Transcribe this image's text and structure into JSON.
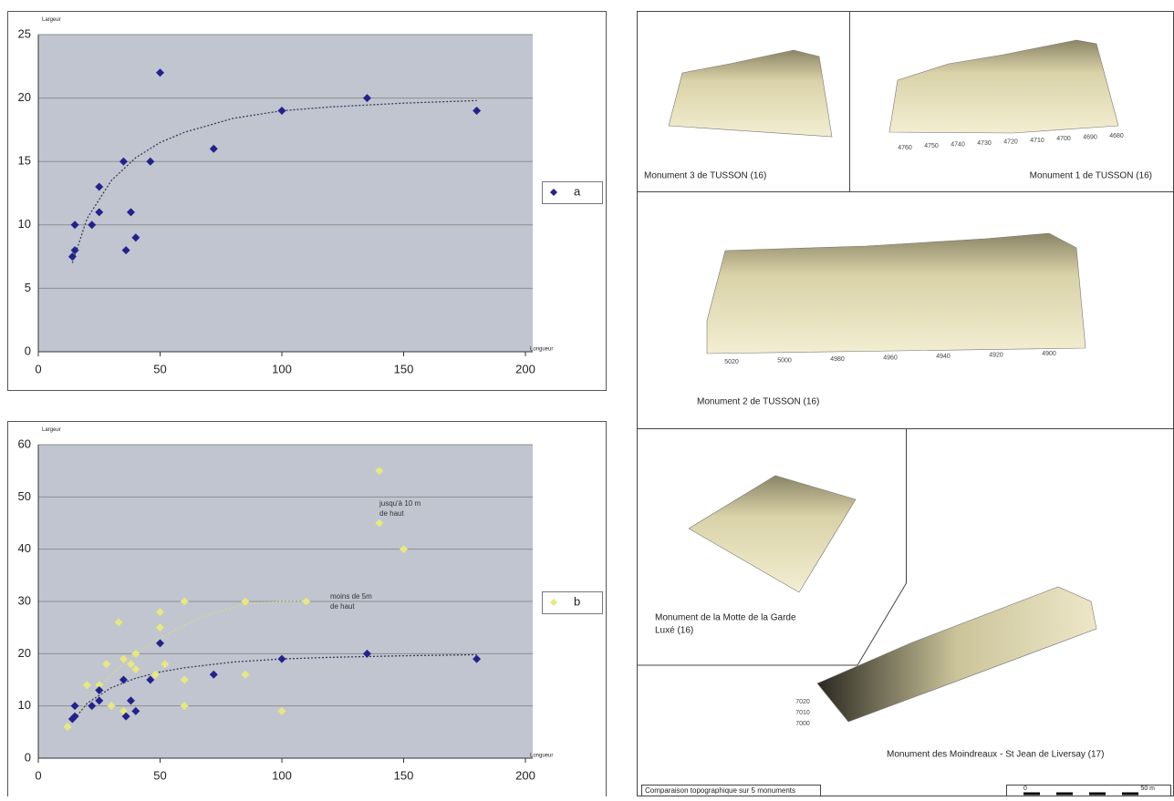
{
  "chart_data": [
    {
      "type": "scatter",
      "ylabel": "Largeur",
      "xlabel": "Longueur",
      "xlim": [
        0,
        200
      ],
      "xticks": [
        0,
        50,
        100,
        150,
        200
      ],
      "ylim": [
        0,
        25
      ],
      "yticks": [
        0,
        5,
        10,
        15,
        20,
        25
      ],
      "grid": true,
      "legend": "right",
      "series": [
        {
          "name": "a",
          "color": "#22228c",
          "x": [
            14,
            15,
            15,
            22,
            25,
            25,
            35,
            36,
            38,
            40,
            46,
            50,
            72,
            100,
            135,
            180
          ],
          "values": [
            7.5,
            8,
            10,
            10,
            11,
            13,
            15,
            8,
            11,
            9,
            15,
            22,
            16,
            19,
            20,
            19
          ]
        }
      ],
      "trendlines": [
        {
          "color": "#3a3a5c",
          "x": [
            14,
            20,
            30,
            40,
            50,
            60,
            80,
            100,
            120,
            150,
            180
          ],
          "values": [
            7,
            10.5,
            13.5,
            15.3,
            16.5,
            17.3,
            18.4,
            19,
            19.3,
            19.6,
            19.8
          ]
        }
      ]
    },
    {
      "type": "scatter",
      "ylabel": "Largeur",
      "xlabel": "Longueur",
      "xlim": [
        0,
        200
      ],
      "xticks": [
        0,
        50,
        100,
        150,
        200
      ],
      "ylim": [
        0,
        60
      ],
      "yticks": [
        0,
        10,
        20,
        30,
        40,
        50,
        60
      ],
      "grid": true,
      "legend": "right",
      "series": [
        {
          "name": "b",
          "color": "#e8e87e",
          "x": [
            12,
            15,
            20,
            22,
            25,
            28,
            30,
            33,
            35,
            35,
            38,
            40,
            40,
            48,
            50,
            50,
            52,
            60,
            60,
            60,
            85,
            85,
            100,
            110,
            140,
            140,
            150
          ],
          "values": [
            6,
            8,
            14,
            10,
            14,
            18,
            10,
            26,
            19,
            9,
            18,
            20,
            17,
            16,
            25,
            28,
            18,
            30,
            15,
            10,
            30,
            16,
            9,
            30,
            55,
            45,
            40
          ]
        },
        {
          "color": "#22228c",
          "x": [
            14,
            15,
            15,
            22,
            25,
            25,
            35,
            36,
            38,
            40,
            46,
            50,
            72,
            100,
            135,
            180
          ],
          "values": [
            7.5,
            8,
            10,
            10,
            11,
            13,
            15,
            8,
            11,
            9,
            15,
            22,
            16,
            19,
            20,
            19
          ]
        }
      ],
      "trendlines": [
        {
          "color": "#d8d890",
          "x": [
            12,
            20,
            30,
            40,
            50,
            60,
            70,
            85,
            100,
            110
          ],
          "values": [
            6,
            11,
            16,
            20,
            23,
            25.5,
            27.5,
            29.5,
            30,
            30
          ]
        },
        {
          "color": "#3a3a5c",
          "x": [
            14,
            20,
            30,
            40,
            50,
            60,
            80,
            100,
            120,
            150,
            180
          ],
          "values": [
            7,
            10.5,
            13.5,
            15.3,
            16.5,
            17.3,
            18.4,
            19,
            19.3,
            19.6,
            19.8
          ]
        }
      ],
      "annotations": [
        {
          "lines": [
            "jusqu'à 10 m",
            "de haut"
          ]
        },
        {
          "lines": [
            "moins de 5m",
            "de haut"
          ]
        }
      ]
    }
  ],
  "figures": {
    "panels": [
      {
        "caption": [
          "Monument 3 de TUSSON  (16)"
        ]
      },
      {
        "caption": [
          "Monument 1 de TUSSON (16)"
        ],
        "ticks": [
          "4760",
          "4750",
          "4740",
          "4730",
          "4720",
          "4710",
          "4700",
          "4690",
          "4680"
        ]
      },
      {
        "caption": [
          "Monument 2 de TUSSON (16)"
        ],
        "ticks": [
          "5020",
          "5000",
          "4980",
          "4960",
          "4940",
          "4920",
          "4900"
        ]
      },
      {
        "caption": [
          "Monument de la Motte de la Garde",
          "Luxé (16)"
        ]
      },
      {
        "caption": [
          "Monument des Moindreaux - St Jean de Liversay (17)"
        ],
        "ticks": [
          "7020",
          "7010",
          "7000"
        ]
      }
    ],
    "footer": "Comparaison topographique sur 5 monuments",
    "scale": [
      "0",
      "50 m"
    ]
  }
}
